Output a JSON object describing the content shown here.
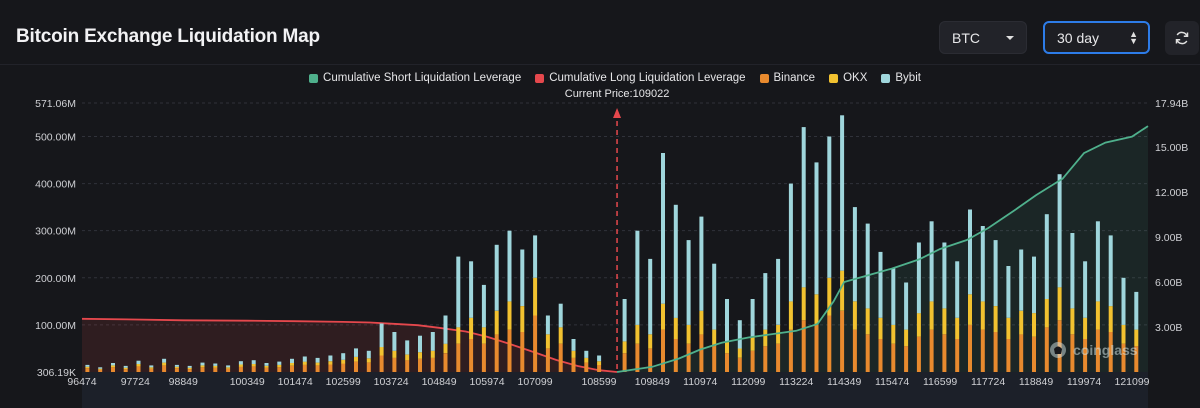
{
  "page": {
    "title": "Bitcoin Exchange Liquidation Map",
    "coin_select": "BTC",
    "period_select": "30 day",
    "watermark": "coinglass"
  },
  "colors": {
    "short_line": "#4fb08c",
    "long_line": "#e5484d",
    "binance": "#e88a2e",
    "okx": "#f2c230",
    "bybit": "#9fd6dc",
    "accent": "#2d7ce8"
  },
  "chart_data": {
    "type": "bar",
    "legend": [
      {
        "name": "Cumulative Short Liquidation Leverage",
        "color": "#4fb08c"
      },
      {
        "name": "Cumulative Long Liquidation Leverage",
        "color": "#e5484d"
      },
      {
        "name": "Binance",
        "color": "#e88a2e"
      },
      {
        "name": "OKX",
        "color": "#f2c230"
      },
      {
        "name": "Bybit",
        "color": "#9fd6dc"
      }
    ],
    "current_price_label": "Current Price:109022",
    "current_price": 109022,
    "x_range": [
      96474,
      121474
    ],
    "x_ticks": [
      "96474",
      "97724",
      "98849",
      "100349",
      "101474",
      "102599",
      "103724",
      "104849",
      "105974",
      "107099",
      "108599",
      "109849",
      "110974",
      "112099",
      "113224",
      "114349",
      "115474",
      "116599",
      "117724",
      "118849",
      "119974",
      "121099"
    ],
    "y_left": {
      "ticks": [
        "306.19K",
        "100.00M",
        "200.00M",
        "300.00M",
        "400.00M",
        "500.00M",
        "571.06M"
      ],
      "range": [
        0,
        571.06
      ],
      "unit": "M"
    },
    "y_right": {
      "ticks": [
        "3.00B",
        "6.00B",
        "9.00B",
        "12.00B",
        "15.00B",
        "17.94B"
      ],
      "range": [
        0,
        17.94
      ],
      "unit": "B"
    },
    "cumulative_long": {
      "x": [
        96474,
        97724,
        98849,
        100349,
        101474,
        102599,
        103224,
        103724,
        104349,
        104849,
        105474,
        105974,
        106474,
        107099,
        107599,
        108099,
        108599,
        109022
      ],
      "y": [
        3.55,
        3.5,
        3.45,
        3.42,
        3.39,
        3.34,
        3.3,
        3.22,
        3.12,
        2.95,
        2.7,
        2.35,
        1.9,
        1.3,
        0.8,
        0.4,
        0.12,
        0.0
      ]
    },
    "cumulative_short": {
      "x": [
        109022,
        109849,
        110474,
        110974,
        111474,
        112099,
        112599,
        113224,
        113724,
        114099,
        114349,
        114849,
        115474,
        116099,
        116599,
        117224,
        117724,
        118349,
        118849,
        119474,
        119974,
        120474,
        121099,
        121474
      ],
      "y": [
        0.0,
        0.35,
        0.9,
        1.5,
        1.95,
        2.3,
        2.5,
        2.75,
        3.2,
        4.7,
        6.0,
        6.4,
        6.9,
        7.5,
        8.2,
        8.8,
        9.6,
        10.8,
        11.8,
        12.9,
        14.6,
        15.3,
        15.7,
        16.4
      ]
    },
    "bars": {
      "description_units": "M",
      "prices": [
        96600,
        96900,
        97200,
        97500,
        97800,
        98100,
        98400,
        98700,
        99000,
        99300,
        99600,
        99900,
        100200,
        100500,
        100800,
        101100,
        101400,
        101700,
        102000,
        102300,
        102600,
        102900,
        103200,
        103500,
        103800,
        104100,
        104400,
        104700,
        105000,
        105300,
        105600,
        105900,
        106200,
        106500,
        106800,
        107100,
        107400,
        107700,
        108000,
        108300,
        108600,
        109200,
        109500,
        109800,
        110100,
        110400,
        110700,
        111000,
        111300,
        111600,
        111900,
        112200,
        112500,
        112800,
        113100,
        113400,
        113700,
        114000,
        114300,
        114600,
        114900,
        115200,
        115500,
        115800,
        116100,
        116400,
        116700,
        117000,
        117300,
        117600,
        117900,
        118200,
        118500,
        118800,
        119100,
        119400,
        119700,
        120000,
        120300,
        120600,
        120900,
        121200
      ],
      "binance": [
        8,
        5,
        10,
        6,
        12,
        7,
        14,
        8,
        6,
        10,
        9,
        7,
        11,
        12,
        9,
        10,
        13,
        15,
        14,
        16,
        18,
        22,
        20,
        35,
        30,
        25,
        28,
        30,
        40,
        60,
        70,
        60,
        80,
        90,
        85,
        120,
        50,
        60,
        30,
        20,
        15,
        40,
        60,
        50,
        90,
        70,
        60,
        80,
        55,
        40,
        30,
        45,
        55,
        60,
        90,
        110,
        100,
        120,
        130,
        90,
        80,
        70,
        60,
        55,
        75,
        90,
        80,
        70,
        100,
        90,
        85,
        70,
        80,
        75,
        95,
        110,
        80,
        70,
        90,
        85,
        60,
        55
      ],
      "okx": [
        3,
        2,
        4,
        3,
        5,
        3,
        6,
        3,
        3,
        4,
        4,
        3,
        5,
        5,
        4,
        5,
        6,
        7,
        6,
        7,
        8,
        10,
        9,
        18,
        15,
        12,
        14,
        15,
        20,
        35,
        45,
        35,
        50,
        60,
        55,
        80,
        30,
        35,
        15,
        10,
        8,
        25,
        40,
        30,
        55,
        45,
        40,
        50,
        35,
        25,
        20,
        30,
        35,
        40,
        60,
        70,
        65,
        80,
        85,
        60,
        55,
        45,
        40,
        35,
        50,
        60,
        55,
        45,
        65,
        60,
        55,
        45,
        50,
        50,
        60,
        70,
        55,
        45,
        60,
        55,
        40,
        35
      ],
      "bybit": [
        4,
        3,
        5,
        4,
        7,
        4,
        8,
        4,
        4,
        6,
        5,
        4,
        7,
        8,
        6,
        7,
        9,
        11,
        10,
        12,
        14,
        18,
        16,
        50,
        40,
        30,
        35,
        40,
        60,
        150,
        120,
        90,
        140,
        150,
        120,
        90,
        40,
        50,
        25,
        15,
        12,
        90,
        200,
        160,
        320,
        240,
        180,
        200,
        140,
        90,
        60,
        80,
        120,
        140,
        250,
        340,
        280,
        300,
        330,
        200,
        180,
        140,
        120,
        100,
        150,
        170,
        140,
        120,
        180,
        160,
        140,
        110,
        130,
        120,
        180,
        240,
        160,
        120,
        170,
        150,
        100,
        80
      ]
    }
  }
}
